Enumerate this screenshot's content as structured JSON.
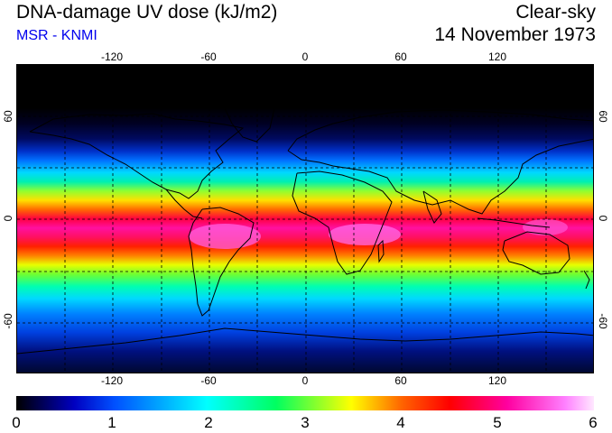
{
  "header": {
    "title": "DNA-damage UV dose (kJ/m2)",
    "subtitle": "MSR - KNMI",
    "sky_condition": "Clear-sky",
    "date": "14 November 1973"
  },
  "map": {
    "projection": "equirectangular",
    "lon_range": [
      -180,
      180
    ],
    "lat_range": [
      -90,
      90
    ],
    "lon_ticks": [
      "-120",
      "-60",
      "0",
      "60",
      "120"
    ],
    "lat_ticks": [
      "60",
      "0",
      "-60"
    ],
    "gridlines": "dashed, every 30 degrees",
    "colors": {
      "background": "#ffffff",
      "coastline": "#000000"
    }
  },
  "colorbar": {
    "ticks": [
      "0",
      "1",
      "2",
      "3",
      "4",
      "5",
      "6"
    ],
    "unit": "kJ/m2"
  }
}
